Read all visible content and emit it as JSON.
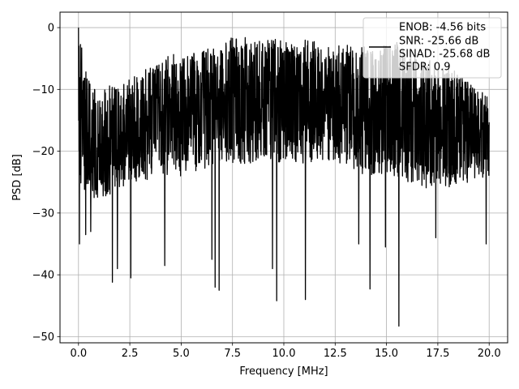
{
  "chart_data": {
    "type": "line",
    "xlabel": "Frequency [MHz]",
    "ylabel": "PSD [dB]",
    "xlim": [
      -0.9,
      20.9
    ],
    "ylim": [
      -51,
      2.5
    ],
    "xticks": [
      0.0,
      2.5,
      5.0,
      7.5,
      10.0,
      12.5,
      15.0,
      17.5,
      20.0
    ],
    "xtick_labels": [
      "0.0",
      "2.5",
      "5.0",
      "7.5",
      "10.0",
      "12.5",
      "15.0",
      "17.5",
      "20.0"
    ],
    "yticks": [
      0,
      -10,
      -20,
      -30,
      -40,
      -50
    ],
    "ytick_labels": [
      "0",
      "−10",
      "−20",
      "−30",
      "−40",
      "−50"
    ],
    "grid": true,
    "legend_position": "top-right",
    "series": [
      {
        "color": "#000000",
        "x_range": [
          0,
          20
        ],
        "points": 2048,
        "peak": {
          "x": 0.0,
          "y": 0.0
        },
        "envelope_top": [
          [
            0.0,
            0.0
          ],
          [
            0.5,
            -8
          ],
          [
            1.0,
            -11
          ],
          [
            1.5,
            -9
          ],
          [
            2.0,
            -10
          ],
          [
            2.5,
            -8
          ],
          [
            3.0,
            -7
          ],
          [
            3.5,
            -6
          ],
          [
            4.0,
            -6
          ],
          [
            4.5,
            -4
          ],
          [
            5.0,
            -5
          ],
          [
            5.5,
            -4
          ],
          [
            6.0,
            -4
          ],
          [
            6.5,
            -3
          ],
          [
            7.0,
            -3
          ],
          [
            7.5,
            -1.5
          ],
          [
            8.0,
            -1.5
          ],
          [
            8.5,
            -2
          ],
          [
            9.0,
            -2
          ],
          [
            9.5,
            -1.5
          ],
          [
            10.0,
            -2
          ],
          [
            10.5,
            -3
          ],
          [
            11.0,
            -2
          ],
          [
            11.5,
            -2
          ],
          [
            12.0,
            -3
          ],
          [
            12.5,
            -3
          ],
          [
            13.0,
            -2
          ],
          [
            13.5,
            -3
          ],
          [
            14.0,
            -3
          ],
          [
            14.5,
            -1.5
          ],
          [
            15.0,
            -3
          ],
          [
            15.5,
            -2
          ],
          [
            16.0,
            -4
          ],
          [
            16.5,
            -5
          ],
          [
            17.0,
            -5
          ],
          [
            17.5,
            -6
          ],
          [
            18.0,
            -6
          ],
          [
            18.5,
            -7
          ],
          [
            19.0,
            -9
          ],
          [
            19.5,
            -10
          ],
          [
            20.0,
            -11
          ]
        ],
        "envelope_floor": [
          [
            0.0,
            -26
          ],
          [
            1.0,
            -28
          ],
          [
            2.0,
            -26
          ],
          [
            3.0,
            -25
          ],
          [
            4.0,
            -24
          ],
          [
            5.0,
            -24
          ],
          [
            6.0,
            -23
          ],
          [
            7.0,
            -22
          ],
          [
            8.0,
            -22
          ],
          [
            9.0,
            -22
          ],
          [
            10.0,
            -22
          ],
          [
            11.0,
            -22
          ],
          [
            12.0,
            -22
          ],
          [
            13.0,
            -23
          ],
          [
            14.0,
            -24
          ],
          [
            15.0,
            -24
          ],
          [
            16.0,
            -25
          ],
          [
            17.0,
            -26
          ],
          [
            18.0,
            -26
          ],
          [
            19.0,
            -25
          ],
          [
            20.0,
            -24
          ]
        ],
        "deep_dips": [
          [
            0.05,
            -35
          ],
          [
            0.35,
            -33.5
          ],
          [
            0.6,
            -33
          ],
          [
            1.65,
            -41.2
          ],
          [
            1.9,
            -39
          ],
          [
            2.55,
            -40.5
          ],
          [
            4.2,
            -38.5
          ],
          [
            6.5,
            -37.5
          ],
          [
            6.65,
            -42
          ],
          [
            6.85,
            -42.5
          ],
          [
            9.45,
            -39
          ],
          [
            9.65,
            -44.2
          ],
          [
            11.05,
            -44
          ],
          [
            13.65,
            -35
          ],
          [
            14.2,
            -42.3
          ],
          [
            14.95,
            -35.5
          ],
          [
            15.6,
            -48.3
          ],
          [
            17.4,
            -34
          ],
          [
            19.85,
            -35
          ]
        ]
      }
    ],
    "legend": [
      {
        "text": "ENOB: -4.56 bits"
      },
      {
        "text": "SNR: -25.66 dB"
      },
      {
        "text": "SINAD: -25.68 dB"
      },
      {
        "text": "SFDR: 0.9"
      }
    ]
  },
  "colors": {
    "line": "#000000",
    "grid": "#b0b0b0",
    "legend_frame": "#cccccc",
    "background": "#ffffff"
  }
}
